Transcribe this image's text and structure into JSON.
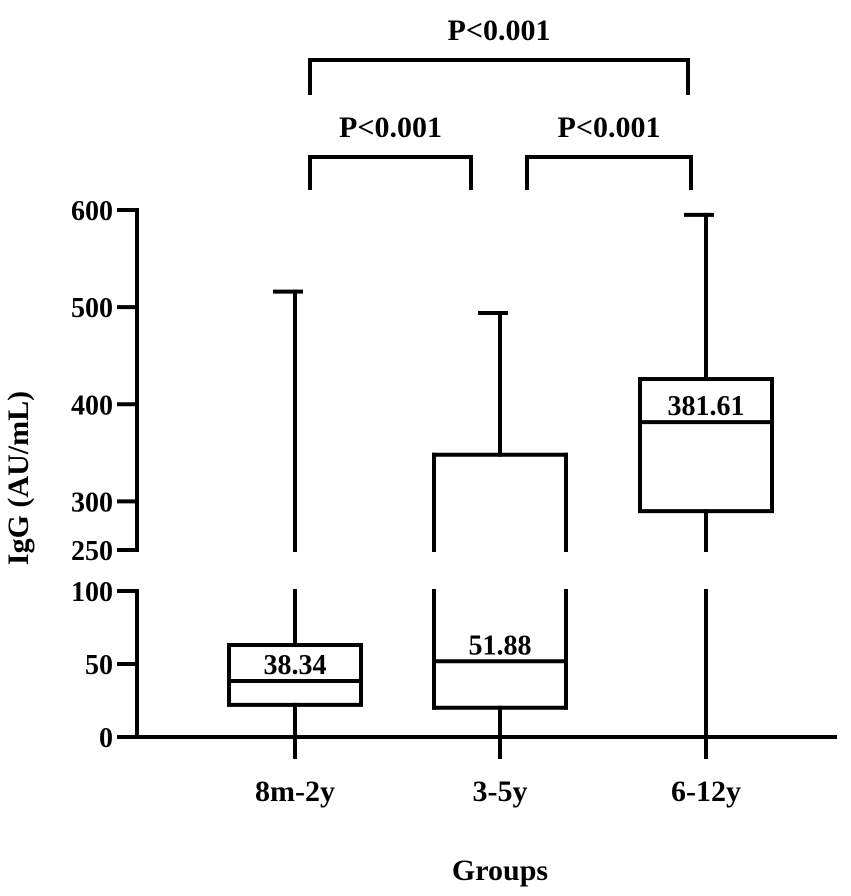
{
  "chart_data": {
    "type": "box",
    "xlabel": "Groups",
    "ylabel": "IgG (AU/mL)",
    "categories": [
      "8m-2y",
      "3-5y",
      "6-12y"
    ],
    "axis_break": {
      "from": 100,
      "to": 250
    },
    "y_segments": [
      {
        "range": [
          0,
          100
        ],
        "ticks": [
          0,
          50,
          100
        ]
      },
      {
        "range": [
          250,
          600
        ],
        "ticks": [
          250,
          300,
          400,
          500,
          600
        ]
      }
    ],
    "boxes": [
      {
        "category": "8m-2y",
        "min": 0,
        "q1": 22,
        "median": 38.34,
        "q3": 63,
        "max": 516,
        "median_label": "38.34"
      },
      {
        "category": "3-5y",
        "min": 0,
        "q1": 20,
        "median": 51.88,
        "q3": 348,
        "max": 494,
        "median_label": "51.88"
      },
      {
        "category": "6-12y",
        "min": 0,
        "q1": 290,
        "median": 381.61,
        "q3": 426,
        "max": 595,
        "median_label": "381.61"
      }
    ],
    "comparisons": [
      {
        "from": "8m-2y",
        "to": "3-5y",
        "label": "P<0.001"
      },
      {
        "from": "3-5y",
        "to": "6-12y",
        "label": "P<0.001"
      },
      {
        "from": "8m-2y",
        "to": "6-12y",
        "label": "P<0.001"
      }
    ]
  }
}
